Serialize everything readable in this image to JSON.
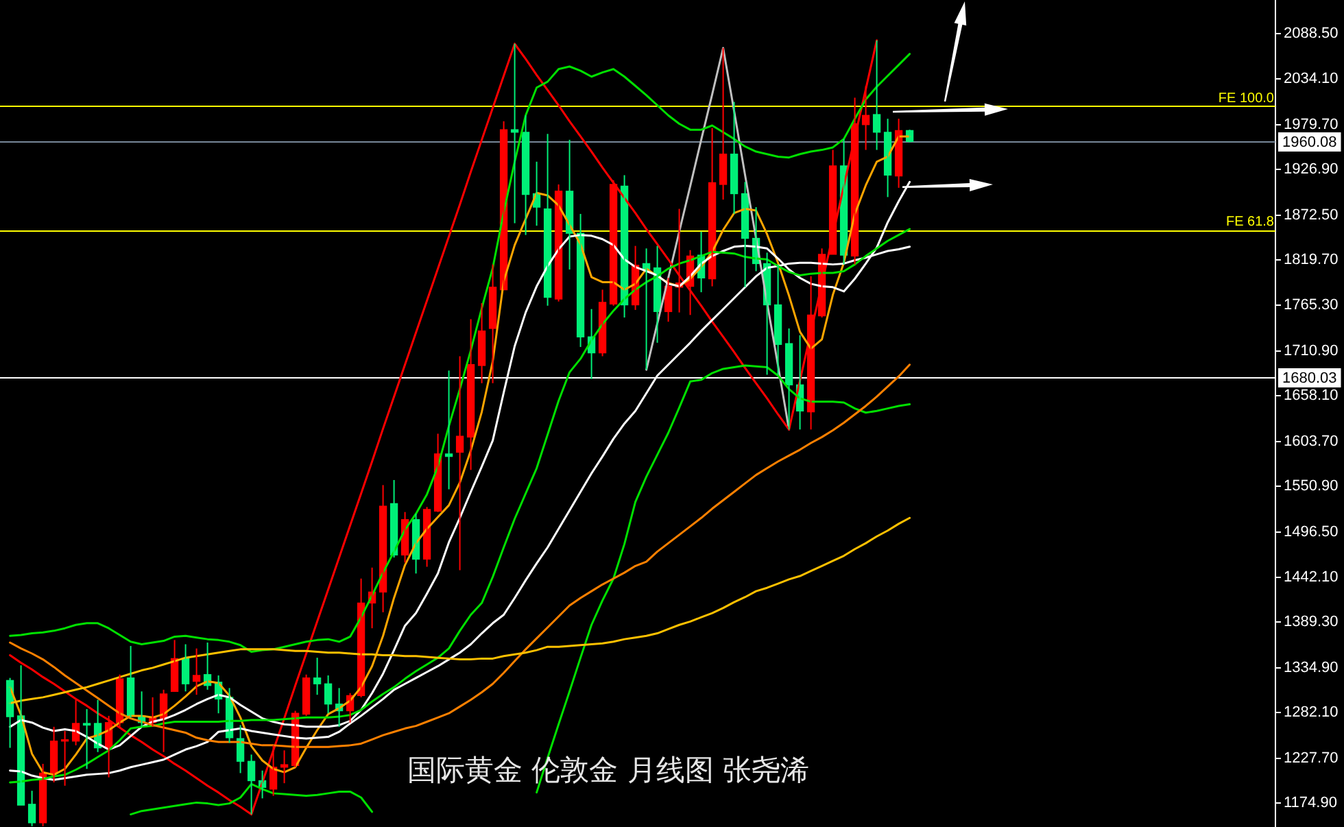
{
  "chart_data": {
    "type": "candlestick",
    "title": "国际黄金 伦敦金 月线图 张尧浠",
    "categories": [
      null,
      null,
      null,
      null,
      null,
      null,
      null,
      null,
      null,
      null,
      null,
      null,
      null,
      null,
      null,
      null,
      null,
      null,
      null,
      null,
      null,
      null,
      null,
      null,
      null,
      null,
      null,
      null,
      null,
      null,
      null,
      null,
      null,
      null,
      null,
      null,
      null,
      null,
      null,
      null,
      null,
      null,
      null,
      null,
      null,
      null,
      null,
      null,
      null,
      null,
      null,
      null,
      null,
      null,
      null,
      null,
      null,
      null,
      null,
      null,
      null,
      null,
      null,
      null,
      null,
      null,
      null,
      null,
      null,
      null,
      null,
      null,
      null,
      null,
      null,
      null,
      null,
      null,
      null,
      null,
      null,
      null,
      null
    ],
    "ohlc": [
      [
        1320,
        1323,
        1240,
        1277
      ],
      [
        1278,
        1338,
        1172,
        1172
      ],
      [
        1173,
        1189,
        1147,
        1151
      ],
      [
        1151,
        1221,
        1147,
        1210
      ],
      [
        1210,
        1265,
        1199,
        1248
      ],
      [
        1248,
        1260,
        1195,
        1249
      ],
      [
        1248,
        1297,
        1243,
        1269
      ],
      [
        1269,
        1286,
        1215,
        1267
      ],
      [
        1269,
        1297,
        1235,
        1240
      ],
      [
        1240,
        1278,
        1205,
        1270
      ],
      [
        1270,
        1327,
        1265,
        1322
      ],
      [
        1323,
        1361,
        1276,
        1278
      ],
      [
        1278,
        1307,
        1265,
        1270
      ],
      [
        1270,
        1300,
        1265,
        1276
      ],
      [
        1275,
        1309,
        1235,
        1304
      ],
      [
        1307,
        1368,
        1307,
        1346
      ],
      [
        1346,
        1363,
        1307,
        1316
      ],
      [
        1319,
        1358,
        1303,
        1326
      ],
      [
        1327,
        1365,
        1309,
        1314
      ],
      [
        1318,
        1326,
        1281,
        1298
      ],
      [
        1300,
        1311,
        1246,
        1252
      ],
      [
        1251,
        1267,
        1210,
        1224
      ],
      [
        1224,
        1232,
        1161,
        1201
      ],
      [
        1201,
        1213,
        1180,
        1193
      ],
      [
        1191,
        1243,
        1183,
        1217
      ],
      [
        1217,
        1237,
        1198,
        1220
      ],
      [
        1219,
        1284,
        1217,
        1281
      ],
      [
        1280,
        1327,
        1278,
        1323
      ],
      [
        1323,
        1347,
        1303,
        1316
      ],
      [
        1316,
        1326,
        1281,
        1292
      ],
      [
        1292,
        1311,
        1265,
        1284
      ],
      [
        1284,
        1305,
        1270,
        1302
      ],
      [
        1302,
        1441,
        1300,
        1412
      ],
      [
        1412,
        1454,
        1382,
        1425
      ],
      [
        1425,
        1552,
        1401,
        1527
      ],
      [
        1530,
        1558,
        1466,
        1469
      ],
      [
        1469,
        1520,
        1460,
        1511
      ],
      [
        1511,
        1518,
        1447,
        1464
      ],
      [
        1464,
        1526,
        1455,
        1523
      ],
      [
        1521,
        1613,
        1520,
        1589
      ],
      [
        1589,
        1688,
        1547,
        1586
      ],
      [
        1591,
        1705,
        1451,
        1610
      ],
      [
        1609,
        1749,
        1570,
        1695
      ],
      [
        1694,
        1768,
        1673,
        1735
      ],
      [
        1738,
        1814,
        1673,
        1787
      ],
      [
        1784,
        1984,
        1784,
        1974
      ],
      [
        1974,
        2076,
        1863,
        1971
      ],
      [
        1971,
        1991,
        1849,
        1897
      ],
      [
        1898,
        1936,
        1860,
        1882
      ],
      [
        1880,
        1969,
        1765,
        1775
      ],
      [
        1773,
        1909,
        1770,
        1901
      ],
      [
        1901,
        1962,
        1808,
        1851
      ],
      [
        1851,
        1874,
        1716,
        1728
      ],
      [
        1728,
        1761,
        1678,
        1709
      ],
      [
        1709,
        1784,
        1705,
        1769
      ],
      [
        1767,
        1914,
        1765,
        1909
      ],
      [
        1907,
        1920,
        1751,
        1766
      ],
      [
        1766,
        1836,
        1760,
        1813
      ],
      [
        1815,
        1833,
        1689,
        1808
      ],
      [
        1810,
        1836,
        1721,
        1758
      ],
      [
        1758,
        1798,
        1746,
        1788
      ],
      [
        1787,
        1880,
        1757,
        1792
      ],
      [
        1788,
        1831,
        1754,
        1824
      ],
      [
        1825,
        1853,
        1781,
        1798
      ],
      [
        1797,
        1976,
        1788,
        1911
      ],
      [
        1909,
        2071,
        1891,
        1945
      ],
      [
        1945,
        2007,
        1874,
        1898
      ],
      [
        1898,
        1912,
        1787,
        1845
      ],
      [
        1845,
        1882,
        1806,
        1815
      ],
      [
        1815,
        1828,
        1683,
        1766
      ],
      [
        1766,
        1814,
        1683,
        1719
      ],
      [
        1720,
        1738,
        1618,
        1671
      ],
      [
        1671,
        1730,
        1618,
        1640
      ],
      [
        1639,
        1800,
        1618,
        1754
      ],
      [
        1753,
        1833,
        1751,
        1826
      ],
      [
        1826,
        1950,
        1826,
        1931
      ],
      [
        1931,
        1963,
        1814,
        1825
      ],
      [
        1824,
        2012,
        1814,
        1981
      ],
      [
        1980,
        2026,
        1950,
        1991
      ],
      [
        1992,
        2080,
        1950,
        1971
      ],
      [
        1971,
        1987,
        1894,
        1920
      ],
      [
        1919,
        1987,
        1905,
        1973
      ],
      [
        1973,
        1974,
        1959,
        1960
      ]
    ],
    "colors": [
      "#00f078",
      "#00f078",
      "#00f078",
      "#ff0000",
      "#ff0000",
      "#ff0000",
      "#ff0000",
      "#00f078",
      "#00f078",
      "#ff0000",
      "#ff0000",
      "#00f078",
      "#00f078",
      "#ff0000",
      "#ff0000",
      "#ff0000",
      "#00f078",
      "#ff0000",
      "#00f078",
      "#00f078",
      "#00f078",
      "#00f078",
      "#00f078",
      "#00f078",
      "#ff0000",
      "#ff0000",
      "#ff0000",
      "#ff0000",
      "#00f078",
      "#00f078",
      "#00f078",
      "#ff0000",
      "#ff0000",
      "#ff0000",
      "#ff0000",
      "#00f078",
      "#ff0000",
      "#00f078",
      "#ff0000",
      "#ff0000",
      "#00f078",
      "#ff0000",
      "#ff0000",
      "#ff0000",
      "#ff0000",
      "#ff0000",
      "#00f078",
      "#00f078",
      "#00f078",
      "#00f078",
      "#ff0000",
      "#00f078",
      "#00f078",
      "#00f078",
      "#ff0000",
      "#ff0000",
      "#00f078",
      "#ff0000",
      "#00f078",
      "#00f078",
      "#ff0000",
      "#ff0000",
      "#ff0000",
      "#00f078",
      "#ff0000",
      "#ff0000",
      "#00f078",
      "#00f078",
      "#00f078",
      "#00f078",
      "#00f078",
      "#00f078",
      "#00f078",
      "#ff0000",
      "#ff0000",
      "#ff0000",
      "#00f078",
      "#ff0000",
      "#ff0000",
      "#00f078",
      "#00f078",
      "#ff0000",
      "#00f078"
    ],
    "series": [
      {
        "type": "line",
        "color": "#ffc000",
        "values": [
          1293,
          1296,
          1298,
          1300,
          1303,
          1306,
          1309,
          1312,
          1316,
          1320,
          1324,
          1328,
          1332,
          1335,
          1339,
          1343,
          1347,
          1349,
          1351,
          1353,
          1355,
          1357,
          1357,
          1357,
          1357,
          1356,
          1355,
          1355,
          1354,
          1353,
          1353,
          1352,
          1351,
          1351,
          1350,
          1350,
          1349,
          1349,
          1348,
          1347,
          1346,
          1345,
          1345,
          1346,
          1346,
          1349,
          1351,
          1353,
          1356,
          1360,
          1360,
          1361,
          1362,
          1363,
          1364,
          1366,
          1369,
          1371,
          1373,
          1376,
          1381,
          1386,
          1390,
          1395,
          1400,
          1406,
          1413,
          1419,
          1426,
          1430,
          1435,
          1440,
          1444,
          1450,
          1456,
          1462,
          1468,
          1476,
          1483,
          1491,
          1498,
          1506,
          1513
        ]
      },
      {
        "type": "line",
        "color": "#ff8000",
        "values": [
          1365,
          1358,
          1352,
          1345,
          1336,
          1326,
          1317,
          1308,
          1299,
          1290,
          1281,
          1275,
          1271,
          1267,
          1264,
          1261,
          1258,
          1252,
          1249,
          1247,
          1247,
          1247,
          1245,
          1243,
          1243,
          1242,
          1241,
          1241,
          1241,
          1241,
          1242,
          1243,
          1245,
          1250,
          1255,
          1259,
          1263,
          1266,
          1271,
          1276,
          1281,
          1289,
          1297,
          1306,
          1316,
          1329,
          1343,
          1357,
          1370,
          1383,
          1396,
          1409,
          1418,
          1426,
          1434,
          1441,
          1448,
          1456,
          1461,
          1473,
          1483,
          1493,
          1503,
          1513,
          1524,
          1534,
          1544,
          1554,
          1564,
          1572,
          1580,
          1587,
          1594,
          1602,
          1609,
          1617,
          1626,
          1636,
          1646,
          1657,
          1669,
          1681,
          1695
        ]
      },
      {
        "type": "line",
        "color": "#00e000",
        "values": [
          1373,
          1374,
          1376,
          1377,
          1379,
          1382,
          1386,
          1388,
          1388,
          1382,
          1374,
          1366,
          1363,
          1365,
          1367,
          1372,
          1373,
          1371,
          1369,
          1368,
          1366,
          1362,
          1354,
          1356,
          1357,
          1360,
          1363,
          1366,
          1368,
          1369,
          1366,
          1372,
          1395,
          1421,
          1448,
          1473,
          1499,
          1518,
          1541,
          1574,
          1622,
          1666,
          1712,
          1762,
          1810,
          1876,
          1936,
          1991,
          2024,
          2031,
          2046,
          2049,
          2044,
          2037,
          2042,
          2046,
          2037,
          2026,
          2015,
          2003,
          1991,
          1981,
          1974,
          1974,
          1979,
          1971,
          1963,
          1954,
          1948,
          1945,
          1942,
          1941,
          1945,
          1948,
          1950,
          1953,
          1963,
          1987,
          2010,
          2025,
          2038,
          2051,
          2064
        ]
      },
      {
        "type": "line",
        "color": "#00e000",
        "values": [
          1199,
          1200,
          1202,
          1203,
          1206,
          1208,
          1214,
          1221,
          1229,
          1237,
          1249,
          1263,
          1265,
          1266,
          1269,
          1271,
          1271,
          1271,
          1271,
          1271,
          1272,
          1272,
          1273,
          1273,
          1273,
          1274,
          1275,
          1276,
          1276,
          1276,
          1277,
          1279,
          1285,
          1295,
          1304,
          1312,
          1322,
          1331,
          1339,
          1347,
          1358,
          1379,
          1398,
          1412,
          1443,
          1478,
          1512,
          1542,
          1572,
          1612,
          1652,
          1686,
          1702,
          1724,
          1743,
          1759,
          1773,
          1784,
          1793,
          1800,
          1809,
          1815,
          1819,
          1824,
          1829,
          1828,
          1827,
          1823,
          1821,
          1820,
          1812,
          1805,
          1801,
          1803,
          1804,
          1804,
          1806,
          1814,
          1824,
          1833,
          1842,
          1849,
          1856
        ]
      },
      {
        "type": "line",
        "color": "#00e000",
        "values": [
          null,
          null,
          null,
          null,
          null,
          null,
          null,
          null,
          null,
          null,
          null,
          1161,
          1165,
          1167,
          1169,
          1171,
          1173,
          1175,
          1174,
          1172,
          1174,
          1181,
          1197,
          1191,
          1186,
          1185,
          1184,
          1183,
          1184,
          1186,
          1188,
          1188,
          1181,
          1164,
          null,
          null,
          null,
          null,
          null,
          null,
          null,
          null,
          null,
          null,
          null,
          null,
          null,
          null,
          1187,
          1228,
          1268,
          1307,
          1347,
          1386,
          1415,
          1441,
          1482,
          1532,
          1562,
          1588,
          1614,
          1644,
          1675,
          1677,
          1685,
          1690,
          1692,
          1694,
          1693,
          1692,
          1682,
          1666,
          1655,
          1651,
          1651,
          1651,
          1650,
          1643,
          1638,
          1640,
          1643,
          1646,
          1648
        ]
      },
      {
        "type": "line",
        "color": "#ffffff",
        "values": [
          1213,
          1212,
          1207,
          1204,
          1202,
          1204,
          1206,
          1208,
          1209,
          1210,
          1213,
          1217,
          1220,
          1223,
          1226,
          1232,
          1238,
          1242,
          1247,
          1259,
          1261,
          1263,
          1260,
          1258,
          1256,
          1254,
          1252,
          1251,
          1252,
          1253,
          1259,
          1269,
          1278,
          1288,
          1298,
          1309,
          1316,
          1323,
          1330,
          1337,
          1345,
          1353,
          1363,
          1376,
          1388,
          1398,
          1418,
          1439,
          1459,
          1478,
          1500,
          1522,
          1544,
          1566,
          1586,
          1607,
          1625,
          1640,
          1661,
          1682,
          1695,
          1708,
          1721,
          1735,
          1748,
          1761,
          1774,
          1787,
          1800,
          1810,
          1812,
          1815,
          1816,
          1816,
          1815,
          1814,
          1815,
          1819,
          1822,
          1826,
          1830,
          1832,
          1835
        ]
      },
      {
        "type": "line",
        "color": "#ffffff",
        "values": [
          1265,
          1273,
          1270,
          1264,
          1260,
          1262,
          1260,
          1253,
          1245,
          1238,
          1243,
          1254,
          1265,
          1271,
          1274,
          1279,
          1285,
          1292,
          1298,
          1303,
          1300,
          1291,
          1283,
          1275,
          1271,
          1268,
          1267,
          1265,
          1265,
          1265,
          1267,
          1272,
          1285,
          1305,
          1328,
          1356,
          1385,
          1400,
          1423,
          1447,
          1484,
          1513,
          1544,
          1574,
          1605,
          1662,
          1717,
          1757,
          1788,
          1812,
          1832,
          1847,
          1849,
          1848,
          1844,
          1837,
          1820,
          1811,
          1806,
          1801,
          1791,
          1788,
          1800,
          1815,
          1824,
          1830,
          1835,
          1836,
          1835,
          1833,
          1821,
          1808,
          1798,
          1791,
          1788,
          1787,
          1782,
          1797,
          1815,
          1834,
          1864,
          1889,
          1912
        ]
      },
      {
        "type": "line",
        "color": "#ffa500",
        "values": [
          1312,
          1279,
          1233,
          1211,
          1208,
          1215,
          1232,
          1251,
          1255,
          1261,
          1270,
          1278,
          1278,
          1276,
          1280,
          1290,
          1301,
          1313,
          1319,
          1317,
          1302,
          1276,
          1242,
          1225,
          1215,
          1211,
          1217,
          1240,
          1261,
          1280,
          1287,
          1296,
          1312,
          1337,
          1373,
          1418,
          1457,
          1483,
          1500,
          1514,
          1528,
          1555,
          1593,
          1639,
          1699,
          1794,
          1837,
          1868,
          1899,
          1896,
          1884,
          1861,
          1838,
          1799,
          1793,
          1793,
          1784,
          1791,
          1809,
          1800,
          1792,
          1788,
          1797,
          1811,
          1829,
          1855,
          1875,
          1880,
          1878,
          1850,
          1816,
          1777,
          1734,
          1714,
          1725,
          1778,
          1816,
          1874,
          1908,
          1936,
          1942,
          1966,
          1966
        ]
      },
      {
        "type": "line",
        "color": "#ff0000",
        "values": [
          1350,
          1341,
          1333,
          1324,
          1316,
          1307,
          1298,
          1290,
          1281,
          1273,
          1264,
          1255,
          1247,
          1238,
          1230,
          1221,
          1213,
          1204,
          1195,
          1187,
          1178,
          1170,
          1161,
          1199,
          1237,
          1275,
          1314,
          1352,
          1390,
          1428,
          1466,
          1504,
          1542,
          1580,
          1619,
          1657,
          1695,
          1733,
          1771,
          1809,
          1847,
          1885,
          1924,
          1962,
          2000,
          2038,
          2076,
          2058,
          2039,
          2021,
          2003,
          1984,
          1966,
          1948,
          1929,
          1911,
          1893,
          1875,
          1856,
          1838,
          1820,
          1801,
          1783,
          1765,
          1746,
          1728,
          1710,
          1691,
          1673,
          1655,
          1636,
          1618,
          1676,
          1734,
          1791,
          1849,
          1907,
          1965,
          2022,
          2080,
          null,
          null,
          null
        ]
      },
      {
        "type": "line",
        "color": "#c0c0c0",
        "values": [
          null,
          null,
          null,
          null,
          null,
          null,
          null,
          null,
          null,
          null,
          null,
          null,
          null,
          null,
          null,
          null,
          null,
          null,
          null,
          null,
          null,
          null,
          null,
          null,
          null,
          null,
          null,
          null,
          null,
          null,
          null,
          null,
          null,
          null,
          null,
          null,
          null,
          null,
          null,
          null,
          null,
          null,
          null,
          null,
          null,
          null,
          null,
          null,
          null,
          null,
          null,
          null,
          null,
          null,
          null,
          null,
          null,
          null,
          1689,
          1744,
          1798,
          1853,
          1907,
          1962,
          2016,
          2071,
          1996,
          1920,
          1845,
          1769,
          1694,
          1618,
          null,
          null,
          null,
          null,
          null,
          null,
          null,
          null,
          null,
          null,
          null
        ]
      }
    ],
    "ylim": [
      1146,
      2128
    ],
    "yticks": [
      {
        "value": 2088.5,
        "label": "2088.50"
      },
      {
        "value": 2034.1,
        "label": "2034.10"
      },
      {
        "value": 1979.7,
        "label": "1979.70"
      },
      {
        "value": 1926.9,
        "label": "1926.90"
      },
      {
        "value": 1872.5,
        "label": "1872.50"
      },
      {
        "value": 1819.7,
        "label": "1819.70"
      },
      {
        "value": 1765.3,
        "label": "1765.30"
      },
      {
        "value": 1710.9,
        "label": "1710.90"
      },
      {
        "value": 1658.1,
        "label": "1658.10"
      },
      {
        "value": 1603.7,
        "label": "1603.70"
      },
      {
        "value": 1550.9,
        "label": "1550.90"
      },
      {
        "value": 1496.5,
        "label": "1496.50"
      },
      {
        "value": 1442.1,
        "label": "1442.10"
      },
      {
        "value": 1389.3,
        "label": "1389.30"
      },
      {
        "value": 1334.9,
        "label": "1334.90"
      },
      {
        "value": 1282.1,
        "label": "1282.10"
      },
      {
        "value": 1227.7,
        "label": "1227.70"
      },
      {
        "value": 1174.9,
        "label": "1174.90"
      }
    ],
    "ref_lines": [
      {
        "axis": "y",
        "value": 2002,
        "color": "#ffff00"
      },
      {
        "axis": "y",
        "value": 1855,
        "color": "#ffff00"
      },
      {
        "axis": "y",
        "value": 1960.08,
        "label": "1960.08",
        "color": "#778899"
      },
      {
        "axis": "y",
        "value": 1680.03,
        "label": "1680.03",
        "color": "#ffffff"
      }
    ],
    "annotations": [
      {
        "text": "FE 100.0",
        "y": 2002
      },
      {
        "text": "FE 61.8",
        "y": 1855
      }
    ],
    "tick_labels": "y"
  }
}
